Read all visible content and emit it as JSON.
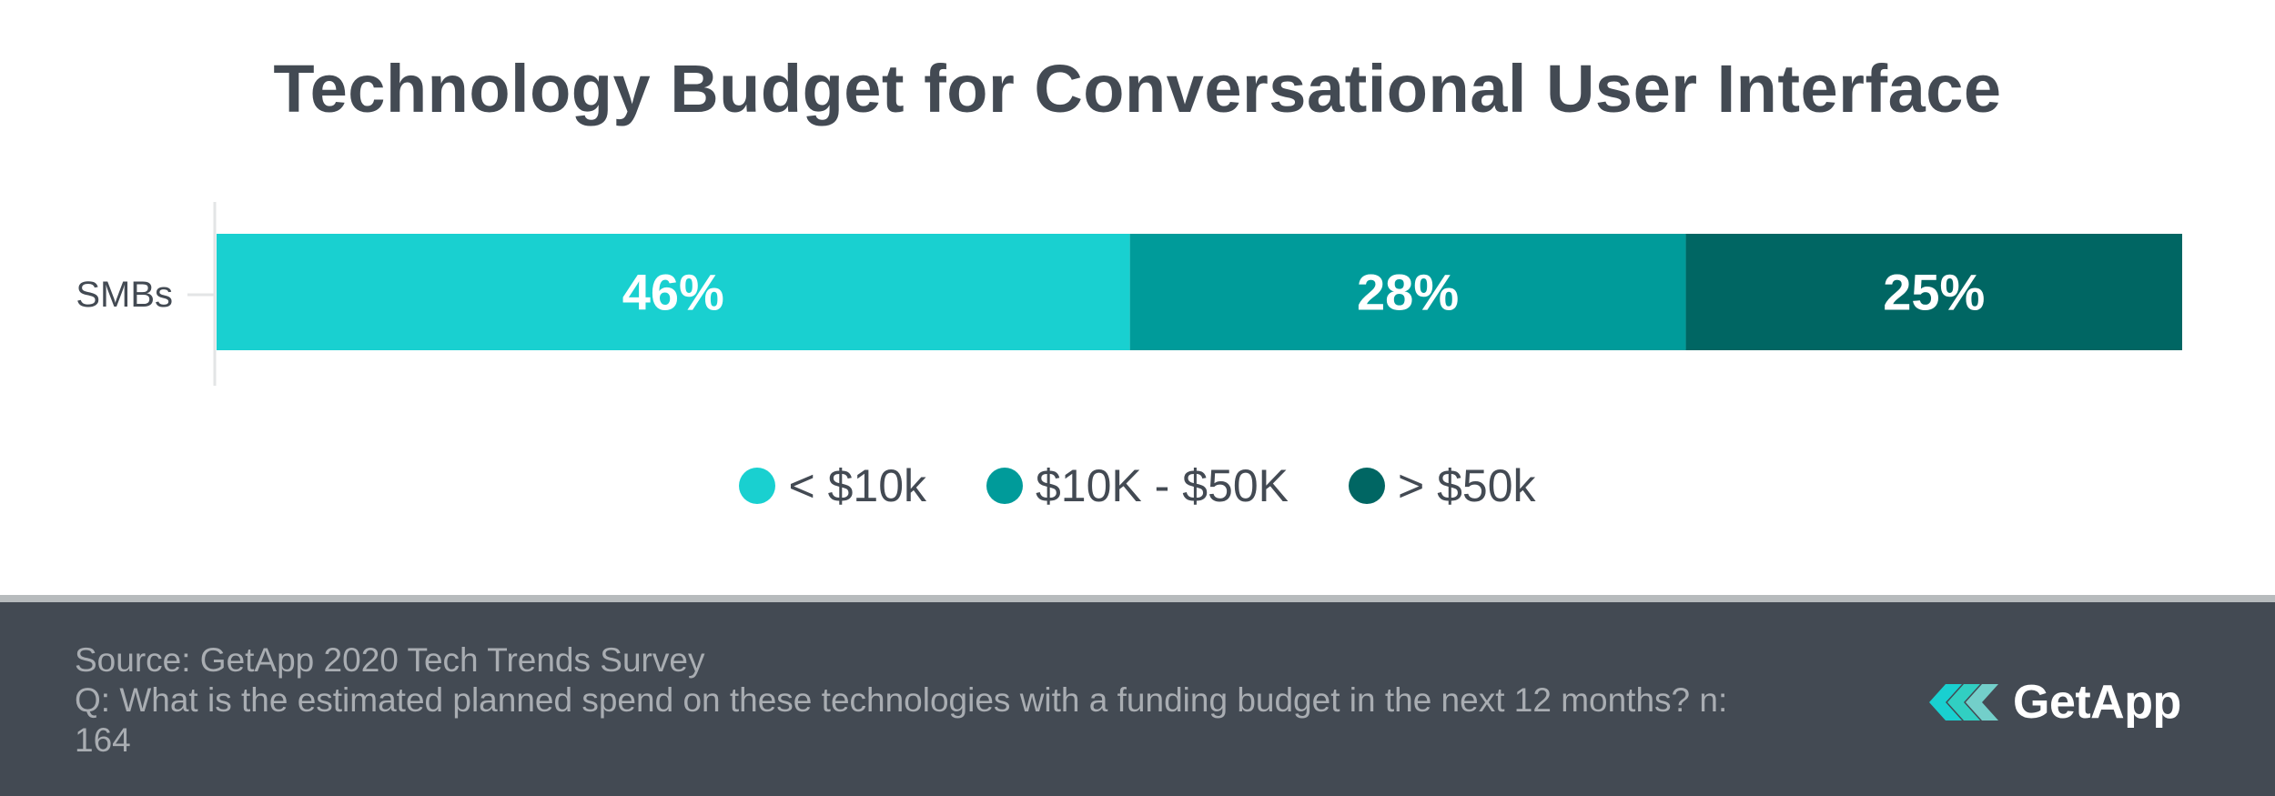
{
  "colors": {
    "title": "#434a53",
    "series": [
      "#19d0d0",
      "#009b9a",
      "#006663"
    ],
    "footer_bg": "#434a53",
    "footer_text": "#a9adb2",
    "axis": "#e3e5e6"
  },
  "chart_data": {
    "type": "bar",
    "orientation": "horizontal",
    "stacked": true,
    "title": "Technology Budget for Conversational User Interface",
    "categories": [
      "SMBs"
    ],
    "series": [
      {
        "name": "< $10k",
        "values": [
          46
        ],
        "label": "46%"
      },
      {
        "name": "$10K - $50K",
        "values": [
          28
        ],
        "label": "28%"
      },
      {
        "name": "> $50k",
        "values": [
          25
        ],
        "label": "25%"
      }
    ],
    "xlim": [
      0,
      99
    ],
    "xlabel": "",
    "ylabel": "",
    "grid": false,
    "legend_position": "bottom-center"
  },
  "footer": {
    "source": "Source: GetApp 2020 Tech Trends Survey",
    "question": "Q: What is the estimated planned spend on these technologies with a funding budget in the next 12 months? n: 164"
  },
  "brand": {
    "name": "GetApp",
    "icon": "getapp-chevrons-logo-icon"
  }
}
